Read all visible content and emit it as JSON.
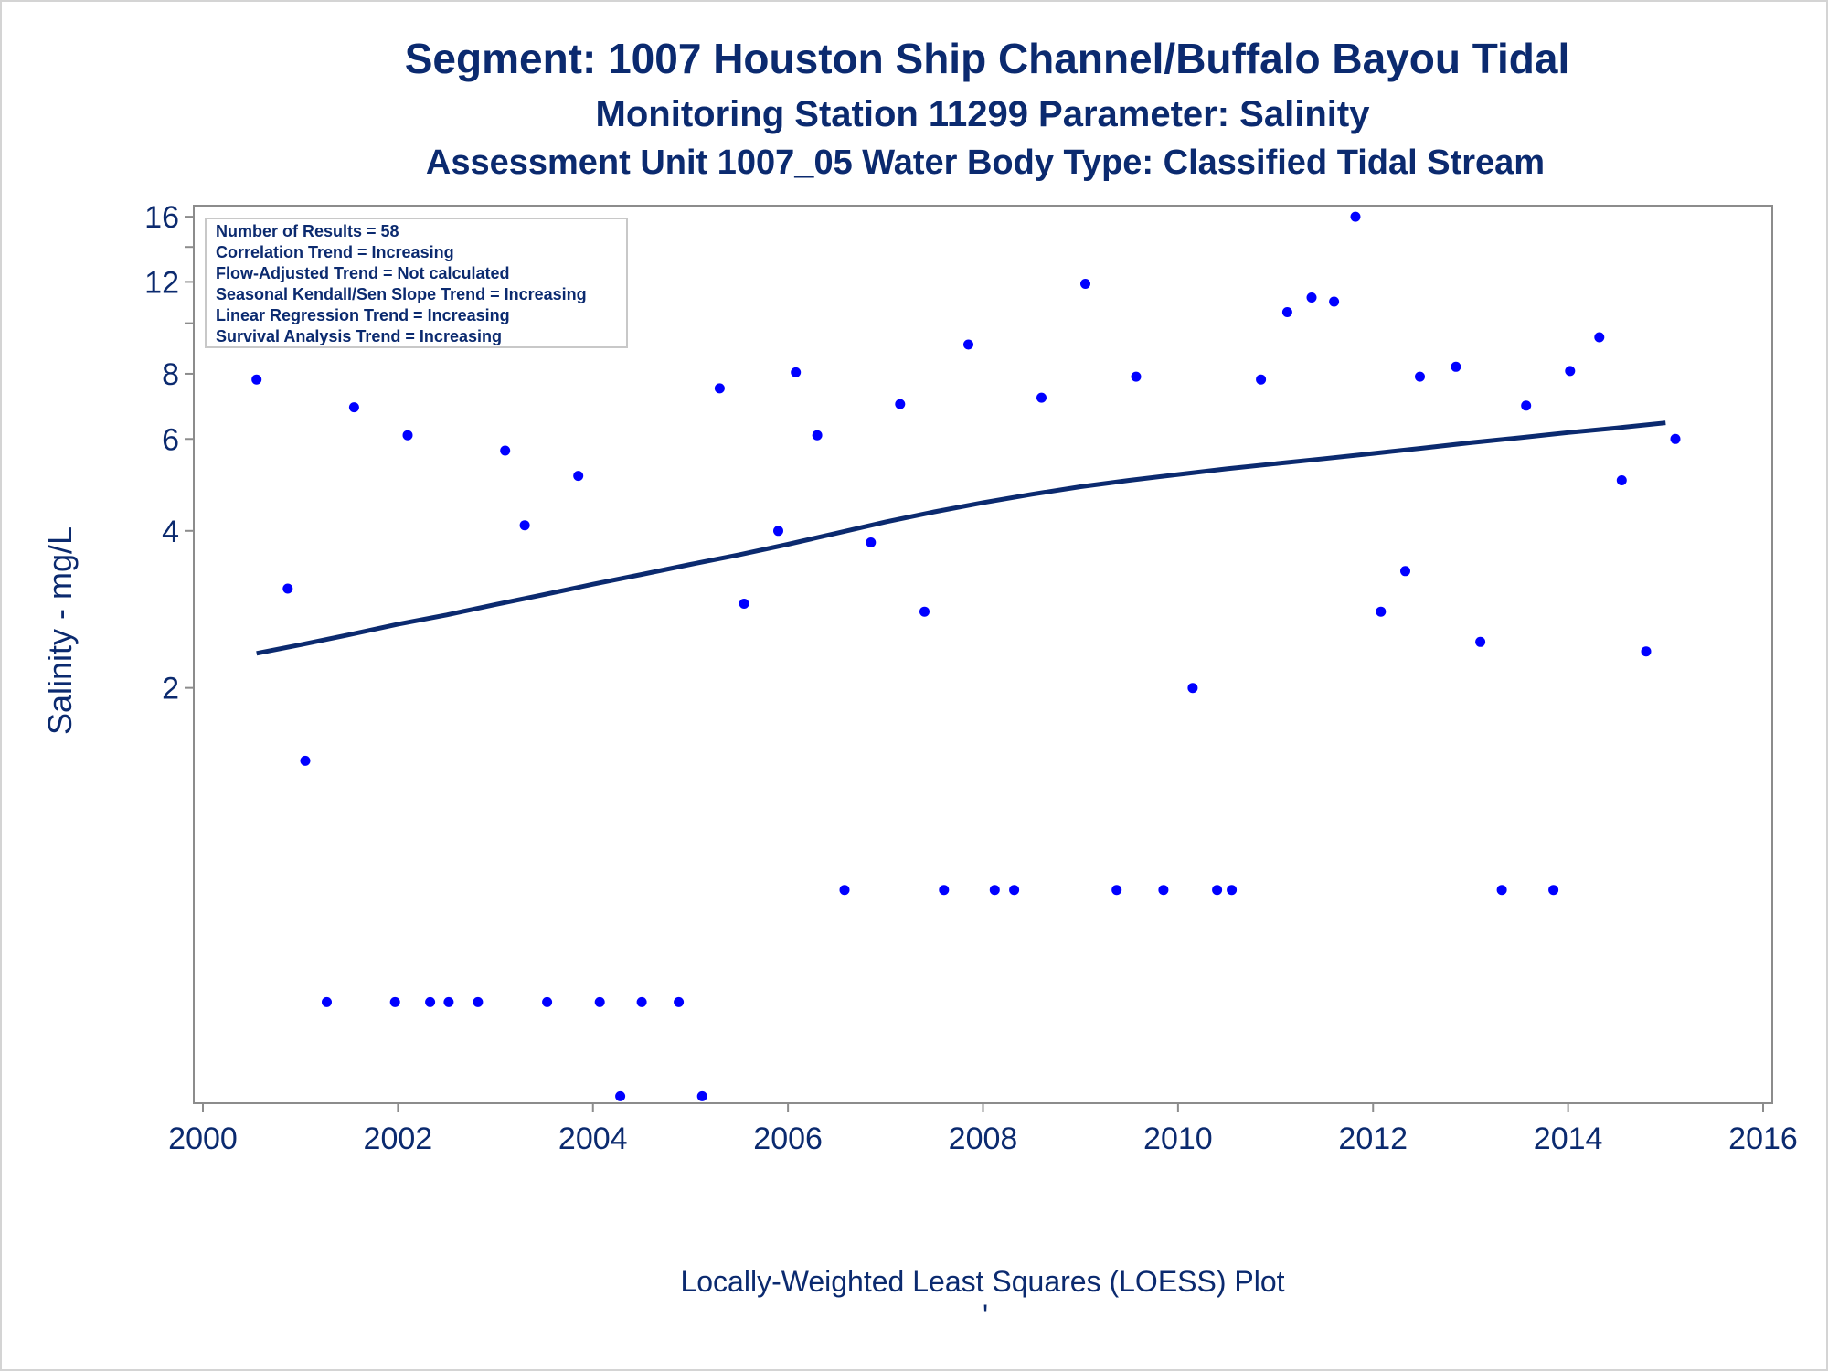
{
  "chart_data": {
    "type": "scatter",
    "title": "Segment: 1007  Houston Ship Channel/Buffalo Bayou Tidal",
    "subtitle": "Monitoring Station 11299 Parameter: Salinity",
    "subtitle2": "Assessment Unit 1007_05   Water Body Type: Classified Tidal Stream",
    "xlabel": "",
    "ylabel": "Salinity - mg/L",
    "footnote": "Locally-Weighted Least Squares (LOESS) Plot",
    "footnote2": "'",
    "x_ticks": [
      2000,
      2002,
      2004,
      2006,
      2008,
      2010,
      2012,
      2014,
      2016
    ],
    "y_ticks": [
      2,
      4,
      6,
      8,
      12,
      16
    ],
    "y_scale": "log",
    "xlim": [
      2000,
      2016
    ],
    "ylim": [
      0.32,
      16.8
    ],
    "grid": false,
    "info_box": [
      "Number of Results = 58",
      "Correlation Trend = Increasing",
      "Flow-Adjusted Trend = Not calculated",
      "Seasonal Kendall/Sen Slope Trend = Increasing",
      "Linear Regression Trend = Increasing",
      "Survival Analysis Trend = Increasing"
    ],
    "colors": {
      "points": "#0000ff",
      "trend": "#0b2a6f",
      "text": "#0b2a6f",
      "axis": "#8c8c8c"
    },
    "points": [
      {
        "x": 2000.55,
        "y": 7.8
      },
      {
        "x": 2000.87,
        "y": 3.1
      },
      {
        "x": 2001.05,
        "y": 1.45
      },
      {
        "x": 2001.27,
        "y": 0.5
      },
      {
        "x": 2001.55,
        "y": 6.9
      },
      {
        "x": 2001.97,
        "y": 0.5
      },
      {
        "x": 2002.1,
        "y": 6.1
      },
      {
        "x": 2002.33,
        "y": 0.5
      },
      {
        "x": 2002.52,
        "y": 0.5
      },
      {
        "x": 2002.82,
        "y": 0.5
      },
      {
        "x": 2003.1,
        "y": 5.7
      },
      {
        "x": 2003.3,
        "y": 4.1
      },
      {
        "x": 2003.53,
        "y": 0.5
      },
      {
        "x": 2003.85,
        "y": 5.1
      },
      {
        "x": 2004.07,
        "y": 0.5
      },
      {
        "x": 2004.28,
        "y": 0.33
      },
      {
        "x": 2004.5,
        "y": 0.5
      },
      {
        "x": 2004.88,
        "y": 0.5
      },
      {
        "x": 2005.12,
        "y": 0.33
      },
      {
        "x": 2005.3,
        "y": 7.5
      },
      {
        "x": 2005.55,
        "y": 2.9
      },
      {
        "x": 2005.9,
        "y": 4.0
      },
      {
        "x": 2006.08,
        "y": 8.05
      },
      {
        "x": 2006.3,
        "y": 6.1
      },
      {
        "x": 2006.58,
        "y": 0.82
      },
      {
        "x": 2006.85,
        "y": 3.8
      },
      {
        "x": 2007.15,
        "y": 7.0
      },
      {
        "x": 2007.4,
        "y": 2.8
      },
      {
        "x": 2007.6,
        "y": 0.82
      },
      {
        "x": 2007.85,
        "y": 9.1
      },
      {
        "x": 2008.12,
        "y": 0.82
      },
      {
        "x": 2008.32,
        "y": 0.82
      },
      {
        "x": 2008.6,
        "y": 7.2
      },
      {
        "x": 2009.05,
        "y": 11.9
      },
      {
        "x": 2009.37,
        "y": 0.82
      },
      {
        "x": 2009.57,
        "y": 7.9
      },
      {
        "x": 2009.85,
        "y": 0.82
      },
      {
        "x": 2010.15,
        "y": 2.0
      },
      {
        "x": 2010.4,
        "y": 0.82
      },
      {
        "x": 2010.55,
        "y": 0.82
      },
      {
        "x": 2010.85,
        "y": 7.8
      },
      {
        "x": 2011.12,
        "y": 10.5
      },
      {
        "x": 2011.37,
        "y": 11.2
      },
      {
        "x": 2011.6,
        "y": 11.0
      },
      {
        "x": 2011.82,
        "y": 16.0
      },
      {
        "x": 2012.08,
        "y": 2.8
      },
      {
        "x": 2012.33,
        "y": 3.35
      },
      {
        "x": 2012.48,
        "y": 7.9
      },
      {
        "x": 2012.85,
        "y": 8.25
      },
      {
        "x": 2013.1,
        "y": 2.45
      },
      {
        "x": 2013.32,
        "y": 0.82
      },
      {
        "x": 2013.57,
        "y": 6.95
      },
      {
        "x": 2013.85,
        "y": 0.82
      },
      {
        "x": 2014.02,
        "y": 8.1
      },
      {
        "x": 2014.32,
        "y": 9.4
      },
      {
        "x": 2014.55,
        "y": 5.0
      },
      {
        "x": 2014.8,
        "y": 2.35
      },
      {
        "x": 2015.1,
        "y": 6.0
      }
    ],
    "trend_line": [
      {
        "x": 2000.55,
        "y": 2.33
      },
      {
        "x": 2001.0,
        "y": 2.42
      },
      {
        "x": 2001.5,
        "y": 2.53
      },
      {
        "x": 2002.0,
        "y": 2.65
      },
      {
        "x": 2002.5,
        "y": 2.76
      },
      {
        "x": 2003.0,
        "y": 2.89
      },
      {
        "x": 2003.5,
        "y": 3.02
      },
      {
        "x": 2004.0,
        "y": 3.16
      },
      {
        "x": 2004.5,
        "y": 3.3
      },
      {
        "x": 2005.0,
        "y": 3.45
      },
      {
        "x": 2005.5,
        "y": 3.6
      },
      {
        "x": 2006.0,
        "y": 3.77
      },
      {
        "x": 2006.5,
        "y": 3.96
      },
      {
        "x": 2007.0,
        "y": 4.16
      },
      {
        "x": 2007.5,
        "y": 4.35
      },
      {
        "x": 2008.0,
        "y": 4.53
      },
      {
        "x": 2008.5,
        "y": 4.7
      },
      {
        "x": 2009.0,
        "y": 4.86
      },
      {
        "x": 2009.5,
        "y": 5.0
      },
      {
        "x": 2010.0,
        "y": 5.13
      },
      {
        "x": 2010.5,
        "y": 5.26
      },
      {
        "x": 2011.0,
        "y": 5.38
      },
      {
        "x": 2011.5,
        "y": 5.5
      },
      {
        "x": 2012.0,
        "y": 5.63
      },
      {
        "x": 2012.5,
        "y": 5.76
      },
      {
        "x": 2013.0,
        "y": 5.9
      },
      {
        "x": 2013.5,
        "y": 6.03
      },
      {
        "x": 2014.0,
        "y": 6.17
      },
      {
        "x": 2014.5,
        "y": 6.3
      },
      {
        "x": 2015.0,
        "y": 6.44
      }
    ]
  }
}
